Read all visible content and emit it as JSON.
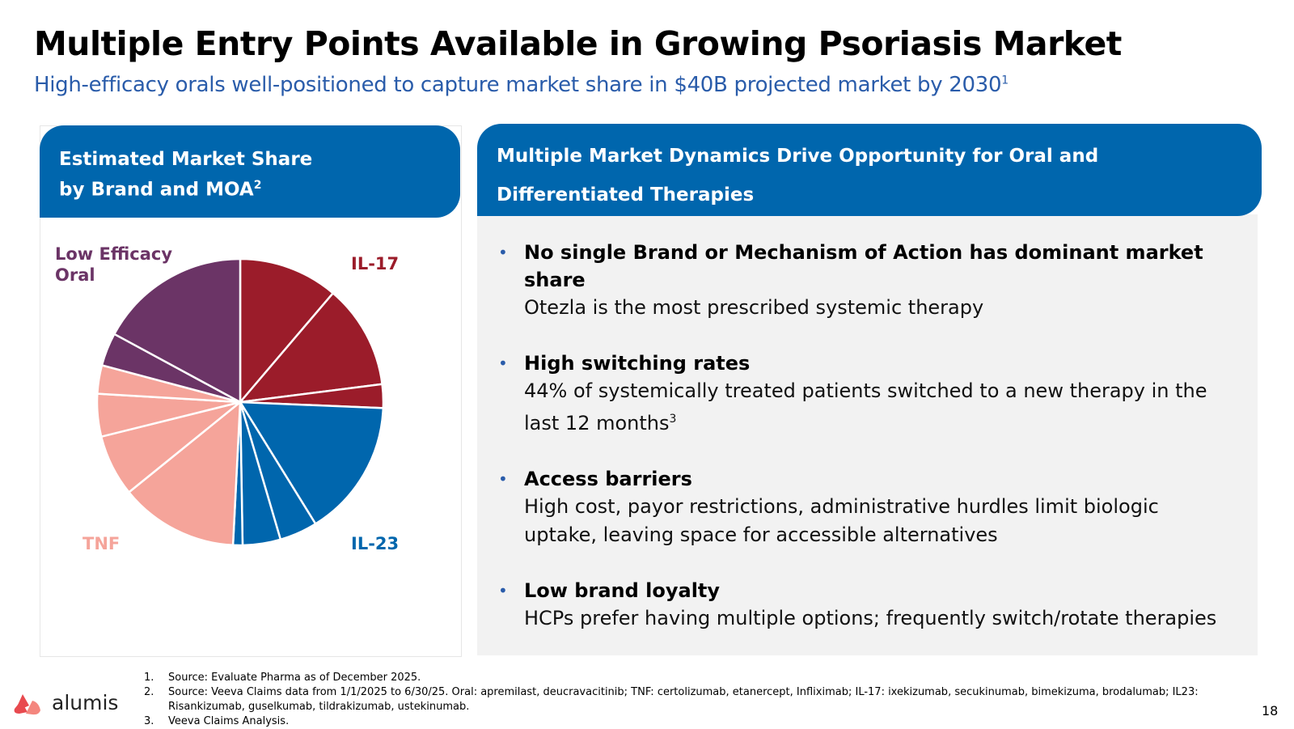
{
  "header": {
    "title": "Multiple Entry Points Available in Growing Psoriasis Market",
    "subtitle": "High-efficacy orals well-positioned to capture market share in $40B projected market by 2030",
    "subtitle_sup": "1"
  },
  "left_panel": {
    "title_line1": "Estimated Market Share",
    "title_line2": "by Brand and MOA",
    "title_sup": "2"
  },
  "chart_data": {
    "type": "pie",
    "title": "Estimated Market Share by Brand and MOA",
    "groups": [
      {
        "name": "IL-17",
        "label": "IL-17",
        "color": "#9b1c2a"
      },
      {
        "name": "IL-23",
        "label": "IL-23",
        "color": "#0066ad"
      },
      {
        "name": "TNF",
        "label": "TNF",
        "color": "#f5a49a"
      },
      {
        "name": "Low Efficacy Oral",
        "label_line1": "Low Efficacy",
        "label_line2": "Oral",
        "color": "#6b3466"
      }
    ],
    "slices": [
      {
        "group": "IL-17",
        "value": 10.5
      },
      {
        "group": "IL-17",
        "value": 11.0
      },
      {
        "group": "IL-17",
        "value": 2.5
      },
      {
        "group": "IL-23",
        "value": 14.5
      },
      {
        "group": "IL-23",
        "value": 4.0
      },
      {
        "group": "IL-23",
        "value": 4.0
      },
      {
        "group": "IL-23",
        "value": 1.0
      },
      {
        "group": "TNF",
        "value": 12.5
      },
      {
        "group": "TNF",
        "value": 6.5
      },
      {
        "group": "TNF",
        "value": 4.5
      },
      {
        "group": "TNF",
        "value": 3.0
      },
      {
        "group": "Low Efficacy Oral",
        "value": 3.5
      },
      {
        "group": "Low Efficacy Oral",
        "value": 16.0
      }
    ]
  },
  "right_panel": {
    "title_line1": "Multiple Market Dynamics Drive Opportunity for Oral and",
    "title_line2": "Differentiated Therapies",
    "bullets": [
      {
        "head": "No single Brand or Mechanism of Action has dominant market share",
        "body": "Otezla is the most prescribed systemic therapy",
        "sup": ""
      },
      {
        "head": "High switching rates",
        "body": "44% of systemically treated patients switched to a new therapy in the last 12 months",
        "sup": "3"
      },
      {
        "head": "Access barriers",
        "body": "High cost, payor restrictions, administrative hurdles limit biologic uptake, leaving space for accessible alternatives",
        "sup": ""
      },
      {
        "head": "Low brand loyalty",
        "body": "HCPs prefer having multiple options; frequently switch/rotate therapies",
        "sup": ""
      }
    ]
  },
  "footnotes": [
    {
      "num": "1.",
      "text": "Source: Evaluate Pharma as of December 2025."
    },
    {
      "num": "2.",
      "text": "Source: Veeva Claims data from 1/1/2025 to 6/30/25. Oral: apremilast, deucravacitinib; TNF: certolizumab, etanercept, Infliximab; IL-17: ixekizumab, secukinumab, bimekizuma, brodalumab; IL23: Risankizumab, guselkumab, tildrakizumab, ustekinumab."
    },
    {
      "num": "3.",
      "text": "Veeva Claims Analysis."
    }
  ],
  "brand": {
    "name": "alumis",
    "logo_colors": [
      "#e84a4f",
      "#f4867e"
    ]
  },
  "page_number": "18",
  "colors": {
    "title": "#000000",
    "subtitle": "#2a5caa",
    "header_bg": "#0066ad",
    "panel_bg": "#f2f2f2"
  }
}
